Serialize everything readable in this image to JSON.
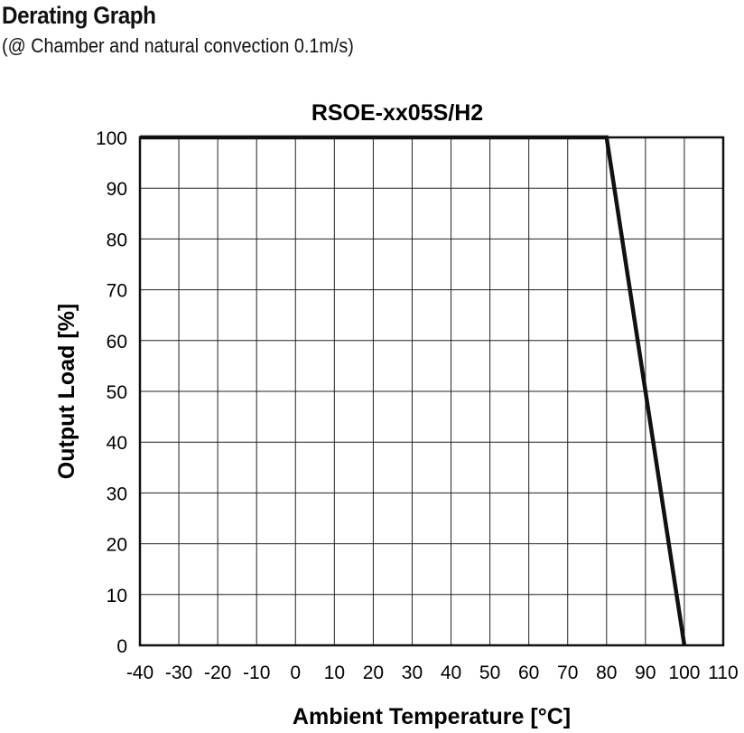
{
  "header": {
    "title": "Derating Graph",
    "subtitle": "(@ Chamber and natural convection 0.1m/s)"
  },
  "chart_data": {
    "type": "line",
    "title": "RSOE-xx05S/H2",
    "xlabel": "Ambient Temperature [°C]",
    "ylabel": "Output Load [%]",
    "xlim": [
      -40,
      110
    ],
    "ylim": [
      0,
      100
    ],
    "xticks": [
      -40,
      -30,
      -20,
      -10,
      0,
      10,
      20,
      30,
      40,
      50,
      60,
      70,
      80,
      90,
      100,
      110
    ],
    "yticks": [
      0,
      10,
      20,
      30,
      40,
      50,
      60,
      70,
      80,
      90,
      100
    ],
    "grid": true,
    "series": [
      {
        "x": [
          -40,
          80,
          100
        ],
        "y": [
          100,
          100,
          0
        ]
      }
    ],
    "colors": {
      "line": "#111111",
      "grid": "#222222",
      "frame": "#111111"
    }
  }
}
